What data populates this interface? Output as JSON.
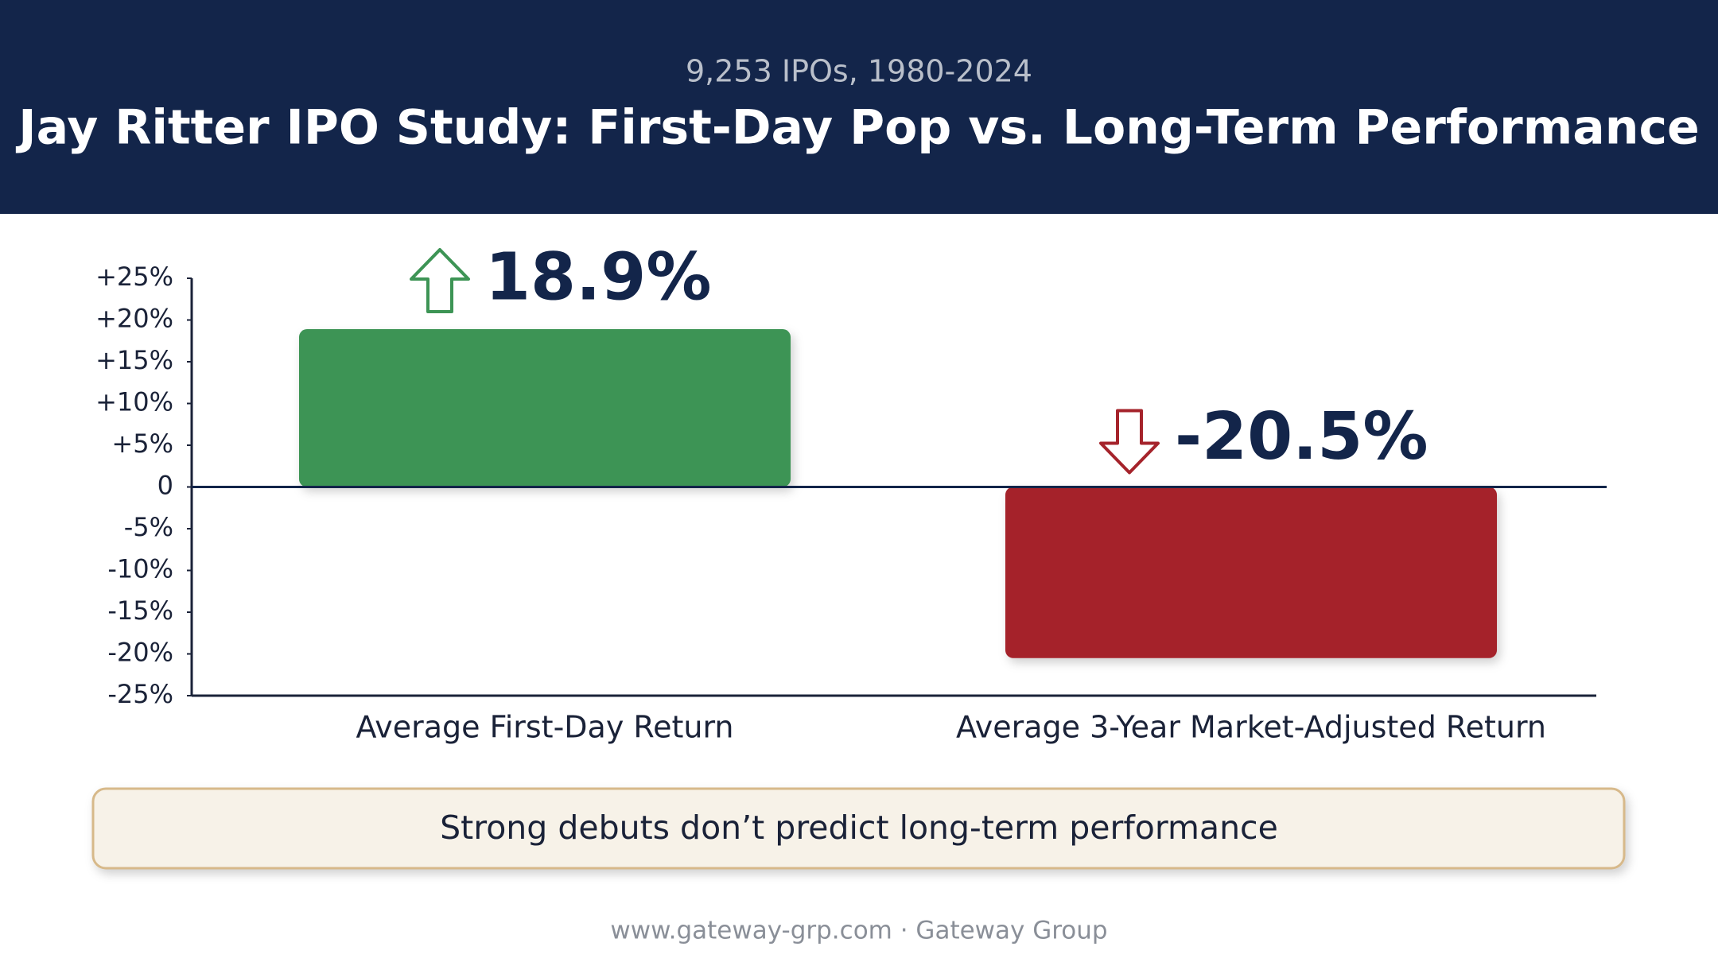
{
  "chart_data": {
    "type": "bar",
    "subtitle": "9,253 IPOs, 1980-2024",
    "title": "Jay Ritter IPO Study: First-Day Pop vs. Long-Term Performance",
    "categories": [
      "Average First-Day Return",
      "Average 3-Year Market-Adjusted Return"
    ],
    "values": [
      18.9,
      -20.5
    ],
    "value_labels": [
      "18.9%",
      "-20.5%"
    ],
    "colors": [
      "#3d9455",
      "#a5232b"
    ],
    "ylim": [
      -25,
      25
    ],
    "yticks": [
      {
        "value": 25,
        "label": "+25%"
      },
      {
        "value": 20,
        "label": "+20%"
      },
      {
        "value": 15,
        "label": "+15%"
      },
      {
        "value": 10,
        "label": "+10%"
      },
      {
        "value": 5,
        "label": "+5%"
      },
      0,
      {
        "value": -5,
        "label": "-5%"
      },
      {
        "value": -10,
        "label": "-10%"
      },
      {
        "value": -15,
        "label": "-15%"
      },
      {
        "value": -20,
        "label": "-20%"
      },
      {
        "value": -25,
        "label": "-25%"
      }
    ],
    "callout": "Strong debuts don’t predict long-term performance",
    "footer": "www.gateway-grp.com · Gateway Group"
  }
}
